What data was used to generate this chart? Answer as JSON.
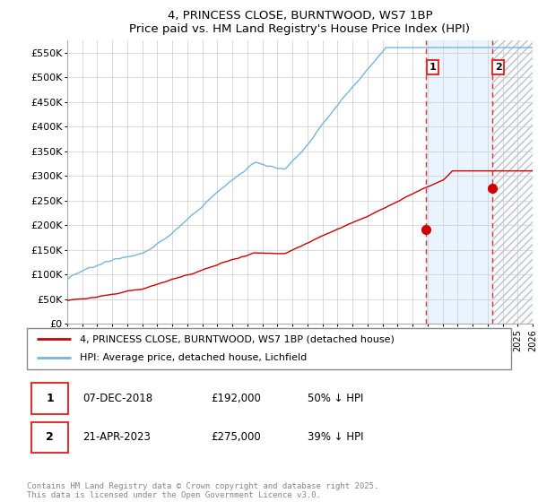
{
  "title_line1": "4, PRINCESS CLOSE, BURNTWOOD, WS7 1BP",
  "title_line2": "Price paid vs. HM Land Registry's House Price Index (HPI)",
  "ylabel_ticks": [
    "£0",
    "£50K",
    "£100K",
    "£150K",
    "£200K",
    "£250K",
    "£300K",
    "£350K",
    "£400K",
    "£450K",
    "£500K",
    "£550K"
  ],
  "ytick_values": [
    0,
    50000,
    100000,
    150000,
    200000,
    250000,
    300000,
    350000,
    400000,
    450000,
    500000,
    550000
  ],
  "ylim": [
    0,
    575000
  ],
  "xlim_start": 1995.0,
  "xlim_end": 2026.0,
  "hpi_color": "#7ab4d8",
  "price_color": "#cc0000",
  "marker1_date": 2018.92,
  "marker1_price": 192000,
  "marker2_date": 2023.31,
  "marker2_price": 275000,
  "legend_label1": "4, PRINCESS CLOSE, BURNTWOOD, WS7 1BP (detached house)",
  "legend_label2": "HPI: Average price, detached house, Lichfield",
  "table_row1_date": "07-DEC-2018",
  "table_row1_price": "£192,000",
  "table_row1_hpi": "50% ↓ HPI",
  "table_row2_date": "21-APR-2023",
  "table_row2_price": "£275,000",
  "table_row2_hpi": "39% ↓ HPI",
  "footer": "Contains HM Land Registry data © Crown copyright and database right 2025.\nThis data is licensed under the Open Government Licence v3.0.",
  "vline_color": "#dd3333",
  "bg_band_color": "#ddeeff",
  "grid_color": "#cccccc",
  "hatch_color": "#bbbbbb"
}
